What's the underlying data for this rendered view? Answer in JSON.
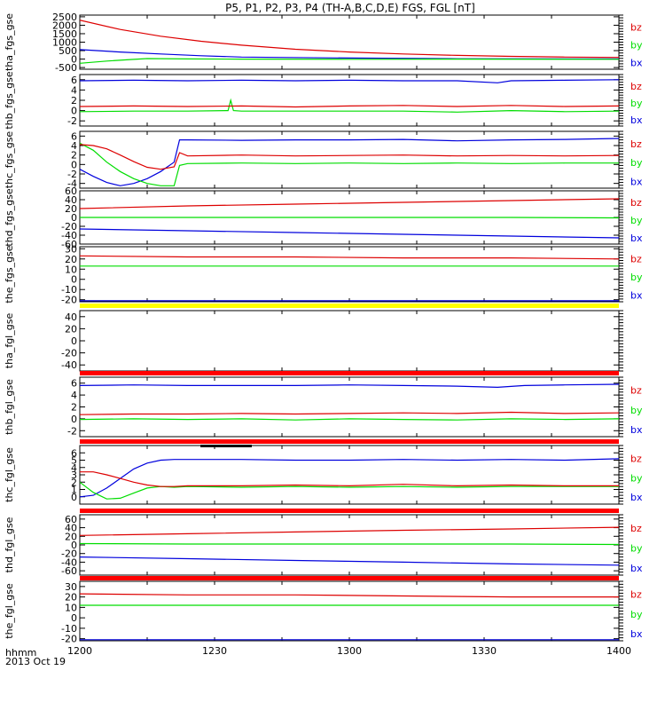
{
  "title": "P5, P1, P2, P3, P4 (TH-A,B,C,D,E) FGS, FGL [nT]",
  "footer": {
    "label_1": "hhmm",
    "label_2": "2013 Oct 19"
  },
  "colors": {
    "bx": "#0000dd",
    "by": "#00dd00",
    "bz": "#dd0000",
    "status_red": "#ff0000",
    "status_yellow": "#ffff00",
    "status_black": "#000000"
  },
  "chart_data": [
    {
      "type": "line",
      "ylabel": "tha_fgs_gse",
      "ylim": [
        -600,
        2600
      ],
      "yticks": [
        2500,
        2000,
        1500,
        1000,
        500,
        0,
        -500
      ],
      "xlim": [
        "1200",
        "1400"
      ],
      "xticks": [
        "1200",
        "1230",
        "1300",
        "1330",
        "1400"
      ],
      "series": [
        {
          "name": "bz",
          "x": [
            0,
            15,
            30,
            45,
            60,
            80,
            100,
            120,
            140,
            160,
            180,
            200
          ],
          "y": [
            2300,
            1750,
            1350,
            1050,
            820,
            580,
            420,
            300,
            220,
            160,
            120,
            100
          ]
        },
        {
          "name": "by",
          "x": [
            0,
            10,
            20,
            25,
            40,
            60,
            100,
            140,
            200
          ],
          "y": [
            -250,
            -120,
            -20,
            30,
            10,
            0,
            -10,
            0,
            -10
          ]
        },
        {
          "name": "bx",
          "x": [
            0,
            15,
            30,
            45,
            60,
            100,
            140,
            200
          ],
          "y": [
            560,
            420,
            300,
            200,
            120,
            60,
            20,
            10
          ]
        }
      ]
    },
    {
      "type": "line",
      "ylabel": "thb_fgs_gse",
      "ylim": [
        -3,
        7
      ],
      "yticks": [
        6,
        4,
        2,
        0,
        -2
      ],
      "xlim": [
        "1200",
        "1400"
      ],
      "xticks": [
        "1200",
        "1230",
        "1300",
        "1330",
        "1400"
      ],
      "series": [
        {
          "name": "bz",
          "x": [
            0,
            20,
            40,
            60,
            80,
            100,
            120,
            140,
            160,
            180,
            200
          ],
          "y": [
            0.8,
            0.9,
            0.8,
            0.9,
            0.7,
            0.9,
            1.0,
            0.8,
            1.0,
            0.8,
            0.9
          ]
        },
        {
          "name": "by",
          "x": [
            0,
            20,
            40,
            55,
            56,
            57,
            60,
            80,
            100,
            120,
            140,
            160,
            180,
            200
          ],
          "y": [
            -0.2,
            -0.1,
            -0.1,
            0,
            2.0,
            0,
            -0.1,
            -0.1,
            -0.1,
            -0.1,
            -0.3,
            0,
            -0.2,
            -0.1
          ]
        },
        {
          "name": "bx",
          "x": [
            0,
            20,
            40,
            60,
            80,
            100,
            120,
            140,
            155,
            160,
            180,
            200
          ],
          "y": [
            5.8,
            5.9,
            5.8,
            5.9,
            5.8,
            5.9,
            5.8,
            5.8,
            5.4,
            5.8,
            5.9,
            6.0
          ]
        }
      ]
    },
    {
      "type": "line",
      "ylabel": "thc_fgs_gse",
      "ylim": [
        -5,
        7
      ],
      "yticks": [
        6,
        4,
        2,
        0,
        -2,
        -4
      ],
      "xlim": [
        "1200",
        "1400"
      ],
      "xticks": [
        "1200",
        "1230",
        "1300",
        "1330",
        "1400"
      ],
      "series": [
        {
          "name": "bz",
          "x": [
            0,
            5,
            10,
            15,
            20,
            25,
            30,
            35,
            37,
            40,
            60,
            80,
            100,
            120,
            140,
            160,
            180,
            200
          ],
          "y": [
            4.2,
            4.0,
            3.3,
            2.0,
            0.6,
            -0.6,
            -1.0,
            -0.5,
            2.5,
            1.8,
            2.0,
            1.8,
            1.9,
            2.0,
            1.8,
            1.9,
            1.8,
            1.9
          ]
        },
        {
          "name": "by",
          "x": [
            0,
            5,
            10,
            15,
            20,
            25,
            30,
            35,
            37,
            40,
            60,
            80,
            100,
            120,
            140,
            160,
            180,
            200
          ],
          "y": [
            4.5,
            3.0,
            0.5,
            -1.5,
            -3.0,
            -4.0,
            -4.5,
            -4.5,
            -0.2,
            0.2,
            0.3,
            0.2,
            0.3,
            0.2,
            0.3,
            0.2,
            0.3,
            0.3
          ]
        },
        {
          "name": "bx",
          "x": [
            0,
            5,
            10,
            15,
            20,
            25,
            30,
            35,
            37,
            40,
            60,
            80,
            100,
            120,
            140,
            160,
            180,
            200
          ],
          "y": [
            -1.0,
            -2.5,
            -3.8,
            -4.5,
            -4.0,
            -3.0,
            -1.5,
            0.5,
            5.2,
            5.2,
            5.1,
            5.2,
            5.2,
            5.3,
            5.0,
            5.2,
            5.3,
            5.5
          ]
        }
      ]
    },
    {
      "type": "line",
      "ylabel": "thd_fgs_gse",
      "ylim": [
        -60,
        60
      ],
      "yticks": [
        60,
        40,
        20,
        0,
        -20,
        -40,
        -60
      ],
      "xlim": [
        "1200",
        "1400"
      ],
      "xticks": [
        "1200",
        "1230",
        "1300",
        "1330",
        "1400"
      ],
      "series": [
        {
          "name": "bz",
          "x": [
            0,
            40,
            80,
            120,
            160,
            200
          ],
          "y": [
            20,
            26,
            30,
            34,
            38,
            42
          ]
        },
        {
          "name": "by",
          "x": [
            0,
            40,
            80,
            120,
            160,
            200
          ],
          "y": [
            0,
            0,
            0,
            0,
            0,
            -1
          ]
        },
        {
          "name": "bx",
          "x": [
            0,
            40,
            80,
            120,
            160,
            200
          ],
          "y": [
            -26,
            -30,
            -34,
            -38,
            -42,
            -46
          ]
        }
      ]
    },
    {
      "type": "line",
      "ylabel": "the_fgs_gse",
      "ylim": [
        -22,
        32
      ],
      "yticks": [
        30,
        20,
        10,
        0,
        -10,
        -20
      ],
      "xlim": [
        "1200",
        "1400"
      ],
      "xticks": [
        "1200",
        "1230",
        "1300",
        "1330",
        "1400"
      ],
      "series": [
        {
          "name": "bz",
          "x": [
            0,
            40,
            80,
            120,
            160,
            200
          ],
          "y": [
            23,
            22,
            22,
            21,
            21,
            20
          ]
        },
        {
          "name": "by",
          "x": [
            0,
            40,
            80,
            120,
            160,
            200
          ],
          "y": [
            13,
            13,
            13,
            13,
            13,
            13
          ]
        },
        {
          "name": "bx",
          "x": [
            0,
            40,
            80,
            120,
            160,
            200
          ],
          "y": [
            -21,
            -21,
            -21,
            -21,
            -21,
            -21
          ]
        }
      ]
    },
    {
      "type": "line",
      "ylabel": "tha_fgl_gse",
      "ylim": [
        -50,
        50
      ],
      "yticks": [
        40,
        20,
        0,
        -20,
        -40
      ],
      "xlim": [
        "1200",
        "1400"
      ],
      "xticks": [
        "1200",
        "1230",
        "1300",
        "1330",
        "1400"
      ],
      "series": []
    },
    {
      "type": "line",
      "ylabel": "thb_fgl_gse",
      "ylim": [
        -3,
        7
      ],
      "yticks": [
        6,
        4,
        2,
        0,
        -2
      ],
      "xlim": [
        "1200",
        "1400"
      ],
      "xticks": [
        "1200",
        "1230",
        "1300",
        "1330",
        "1400"
      ],
      "series": [
        {
          "name": "bz",
          "x": [
            0,
            20,
            40,
            60,
            80,
            100,
            120,
            140,
            160,
            180,
            200
          ],
          "y": [
            0.7,
            0.8,
            0.8,
            0.9,
            0.8,
            0.9,
            1.0,
            0.9,
            1.1,
            0.9,
            1.0
          ]
        },
        {
          "name": "by",
          "x": [
            0,
            20,
            40,
            60,
            80,
            100,
            120,
            140,
            160,
            180,
            200
          ],
          "y": [
            -0.1,
            0,
            -0.1,
            0,
            -0.2,
            0,
            -0.1,
            -0.2,
            0,
            -0.1,
            0
          ]
        },
        {
          "name": "bx",
          "x": [
            0,
            20,
            40,
            60,
            80,
            100,
            120,
            140,
            155,
            165,
            180,
            200
          ],
          "y": [
            5.6,
            5.7,
            5.6,
            5.6,
            5.6,
            5.7,
            5.6,
            5.5,
            5.3,
            5.6,
            5.7,
            5.8
          ]
        }
      ]
    },
    {
      "type": "line",
      "ylabel": "thc_fgl_gse",
      "ylim": [
        -1,
        7
      ],
      "yticks": [
        6,
        5,
        4,
        3,
        2,
        1,
        0
      ],
      "xlim": [
        "1200",
        "1400"
      ],
      "xticks": [
        "1200",
        "1230",
        "1300",
        "1330",
        "1400"
      ],
      "series": [
        {
          "name": "bz",
          "x": [
            0,
            5,
            10,
            15,
            20,
            25,
            30,
            35,
            40,
            60,
            80,
            100,
            120,
            140,
            160,
            180,
            200
          ],
          "y": [
            3.4,
            3.4,
            3.0,
            2.5,
            2.0,
            1.6,
            1.4,
            1.4,
            1.5,
            1.5,
            1.6,
            1.5,
            1.7,
            1.5,
            1.6,
            1.5,
            1.5
          ]
        },
        {
          "name": "by",
          "x": [
            0,
            5,
            10,
            15,
            20,
            25,
            30,
            35,
            40,
            60,
            80,
            100,
            120,
            140,
            160,
            180,
            200
          ],
          "y": [
            2.0,
            0.6,
            -0.3,
            -0.2,
            0.5,
            1.2,
            1.4,
            1.3,
            1.4,
            1.3,
            1.4,
            1.3,
            1.4,
            1.3,
            1.4,
            1.4,
            1.4
          ]
        },
        {
          "name": "bx",
          "x": [
            0,
            5,
            10,
            15,
            20,
            25,
            30,
            35,
            40,
            60,
            80,
            100,
            120,
            140,
            160,
            180,
            200
          ],
          "y": [
            0,
            0.2,
            1.2,
            2.5,
            3.8,
            4.6,
            5.0,
            5.1,
            5.1,
            5.1,
            5.0,
            5.0,
            5.1,
            5.0,
            5.1,
            5.0,
            5.2
          ]
        }
      ]
    },
    {
      "type": "line",
      "ylabel": "thd_fgl_gse",
      "ylim": [
        -70,
        70
      ],
      "yticks": [
        60,
        40,
        20,
        0,
        -20,
        -40,
        -60
      ],
      "xlim": [
        "1200",
        "1400"
      ],
      "xticks": [
        "1200",
        "1230",
        "1300",
        "1330",
        "1400"
      ],
      "series": [
        {
          "name": "bz",
          "x": [
            0,
            40,
            80,
            120,
            160,
            200
          ],
          "y": [
            22,
            26,
            30,
            34,
            37,
            41
          ]
        },
        {
          "name": "by",
          "x": [
            0,
            40,
            80,
            120,
            160,
            200
          ],
          "y": [
            3,
            2,
            2,
            2,
            2,
            1
          ]
        },
        {
          "name": "bx",
          "x": [
            0,
            40,
            80,
            120,
            160,
            200
          ],
          "y": [
            -28,
            -32,
            -36,
            -40,
            -44,
            -47
          ]
        }
      ]
    },
    {
      "type": "line",
      "ylabel": "the_fgl_gse",
      "ylim": [
        -22,
        35
      ],
      "yticks": [
        30,
        20,
        10,
        0,
        -10,
        -20
      ],
      "xlim": [
        "1200",
        "1400"
      ],
      "xticks": [
        "1200",
        "1230",
        "1300",
        "1330",
        "1400"
      ],
      "series": [
        {
          "name": "bz",
          "x": [
            0,
            40,
            80,
            120,
            160,
            200
          ],
          "y": [
            23,
            22,
            22,
            21,
            20,
            20
          ]
        },
        {
          "name": "by",
          "x": [
            0,
            40,
            80,
            120,
            160,
            200
          ],
          "y": [
            12,
            12,
            12,
            12,
            12,
            12
          ]
        },
        {
          "name": "bx",
          "x": [
            0,
            40,
            80,
            120,
            160,
            200
          ],
          "y": [
            -21,
            -21,
            -21,
            -21,
            -21,
            -21
          ]
        }
      ]
    }
  ]
}
